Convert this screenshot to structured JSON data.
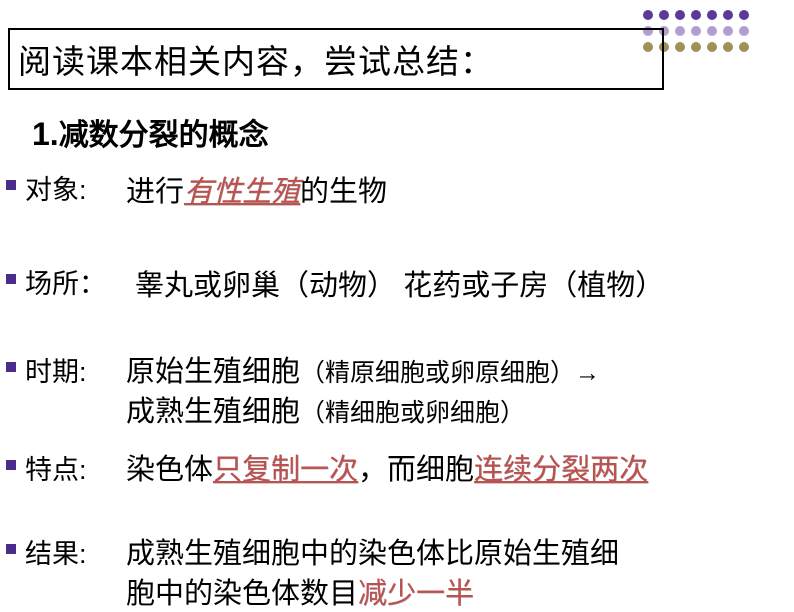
{
  "decoration": {
    "dot_colors_rows": [
      [
        "#5b3a99",
        "#5b3a99",
        "#5b3a99",
        "#5b3a99",
        "#5b3a99",
        "#5b3a99",
        "#5b3a99"
      ],
      [
        "#b0a0d0",
        "#b0a0d0",
        "#b0a0d0",
        "#b0a0d0",
        "#b0a0d0",
        "#b0a0d0",
        "#b0a0d0"
      ],
      [
        "#a09058",
        "#a09058",
        "#a09058",
        "#a09058",
        "#a09058",
        "#a09058",
        "#a09058"
      ]
    ]
  },
  "title": "阅读课本相关内容，尝试总结：",
  "heading_num": "1.",
  "heading_text": "减数分裂的概念",
  "rows": {
    "subject": {
      "label": "对象:",
      "prefix": "进行",
      "emphasis": "有性生殖",
      "suffix": "的生物"
    },
    "place": {
      "label": "场所：",
      "text": "睾丸或卵巢（动物） 花药或子房（植物）"
    },
    "period": {
      "label": "时期:",
      "line1_a": "原始生殖细胞",
      "line1_b": "（精原细胞或卵原细胞）→",
      "line2_a": "成熟生殖细胞",
      "line2_b": "（精细胞或卵细胞）"
    },
    "feature": {
      "label": "特点:",
      "a": "染色体",
      "b": "只复制一次",
      "c": "，而细胞",
      "d": "连续分裂两次"
    },
    "result": {
      "label": "结果:",
      "line1": "成熟生殖细胞中的染色体比原始生殖细",
      "line2_a": "胞中的染色体数目",
      "line2_b": "减少一半"
    }
  },
  "colors": {
    "bullet": "#4b2c8c",
    "text": "#000000",
    "emphasis": "#c0504d",
    "background": "#ffffff"
  },
  "typography": {
    "title_fontsize": 33,
    "heading_fontsize": 30,
    "label_fontsize": 27,
    "body_fontsize": 29,
    "small_fontsize": 25
  }
}
